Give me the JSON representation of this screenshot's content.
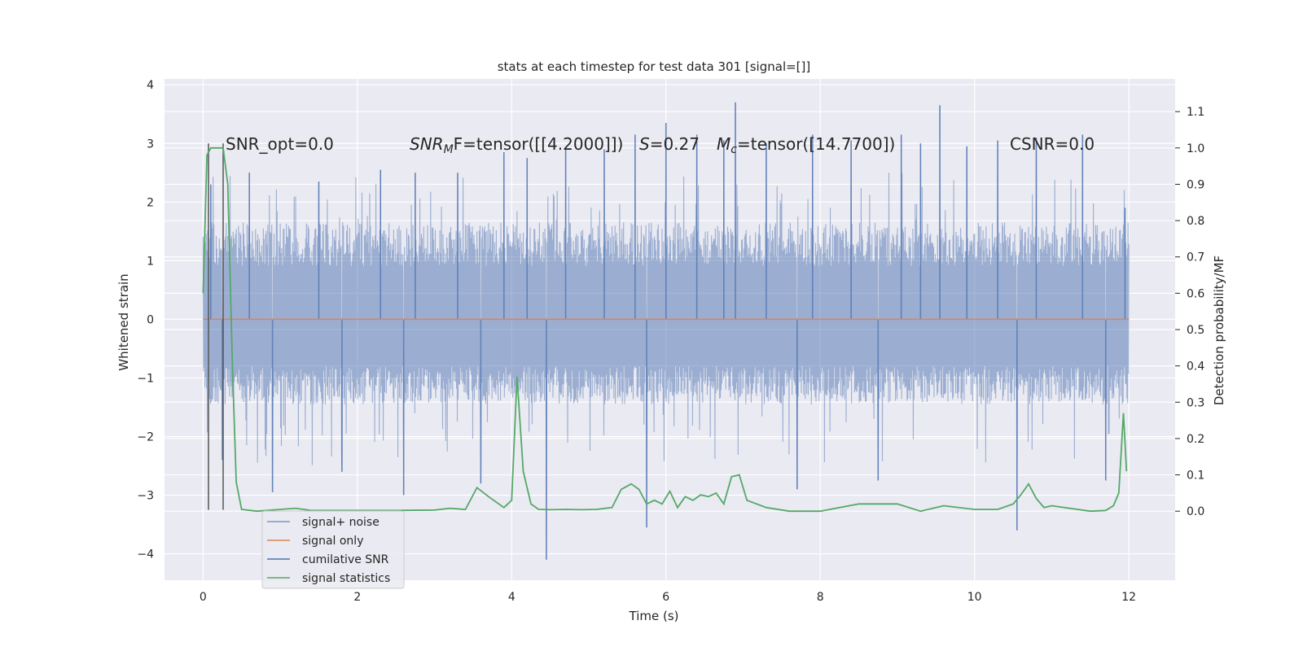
{
  "chart_data": {
    "type": "line",
    "title": "stats at each timestep for test data 301 [signal=[]]",
    "xlabel": "Time (s)",
    "ylabel_left": "Whitened strain",
    "ylabel_right": "Detection probability/MF",
    "xlim": [
      -0.5,
      12.6
    ],
    "ylim_left": [
      -4.45,
      4.1
    ],
    "ylim_right": [
      -0.19,
      1.19
    ],
    "x_ticks": [
      0,
      2,
      4,
      6,
      8,
      10,
      12
    ],
    "x_tick_labels": [
      "0",
      "2",
      "4",
      "6",
      "8",
      "10",
      "12"
    ],
    "y_left_ticks": [
      4,
      3,
      2,
      1,
      0,
      -1,
      -2,
      -3,
      -4
    ],
    "y_left_tick_labels": [
      "4",
      "3",
      "2",
      "1",
      "0",
      "−1",
      "−2",
      "−3",
      "−4"
    ],
    "y_right_ticks": [
      1.1,
      1.0,
      0.9,
      0.8,
      0.7,
      0.6,
      0.5,
      0.4,
      0.3,
      0.2,
      0.1,
      0.0
    ],
    "y_right_tick_labels": [
      "1.1",
      "1.0",
      "0.9",
      "0.8",
      "0.7",
      "0.6",
      "0.5",
      "0.4",
      "0.3",
      "0.2",
      "0.1",
      "0.0"
    ],
    "grid": true,
    "legend_position": "lower-left",
    "annotations": {
      "snr_opt": "SNR_opt=0.0",
      "snr_mf_prefix": "SNR",
      "snr_mf_sub": "M",
      "snr_mf_suffix": "F=tensor([[4.2000]])",
      "s_label": "S",
      "s_value": "=0.27",
      "mc_label": "M",
      "mc_sub": "c",
      "mc_value": "=tensor([14.7700])",
      "csnr": "CSNR=0.0"
    },
    "series": [
      {
        "name": "signal+ noise",
        "axis": "left",
        "color": "#4c72b0",
        "opacity": 0.5,
        "x_range": [
          0,
          12
        ],
        "band": [
          -1.45,
          1.65
        ],
        "spikes": [
          [
            0.1,
            2.3
          ],
          [
            0.25,
            -2.4
          ],
          [
            0.6,
            2.5
          ],
          [
            0.9,
            -2.95
          ],
          [
            1.5,
            2.35
          ],
          [
            1.8,
            -2.6
          ],
          [
            2.3,
            2.55
          ],
          [
            2.6,
            -3.0
          ],
          [
            2.75,
            2.5
          ],
          [
            3.3,
            2.5
          ],
          [
            3.6,
            -2.8
          ],
          [
            3.9,
            2.85
          ],
          [
            4.2,
            2.75
          ],
          [
            4.45,
            -4.1
          ],
          [
            4.7,
            2.9
          ],
          [
            5.2,
            2.9
          ],
          [
            5.6,
            3.15
          ],
          [
            5.75,
            -3.55
          ],
          [
            6.0,
            3.35
          ],
          [
            6.4,
            3.15
          ],
          [
            6.75,
            3.05
          ],
          [
            6.9,
            3.7
          ],
          [
            7.3,
            3.0
          ],
          [
            7.7,
            -2.9
          ],
          [
            7.9,
            3.15
          ],
          [
            8.4,
            3.05
          ],
          [
            8.75,
            -2.75
          ],
          [
            9.05,
            3.15
          ],
          [
            9.3,
            3.0
          ],
          [
            9.55,
            3.65
          ],
          [
            9.9,
            2.95
          ],
          [
            10.3,
            3.05
          ],
          [
            10.55,
            -3.6
          ],
          [
            10.8,
            3.1
          ],
          [
            11.4,
            3.15
          ],
          [
            11.7,
            -2.75
          ],
          [
            11.95,
            1.9
          ]
        ]
      },
      {
        "name": "signal only",
        "axis": "left",
        "color": "#dd8452",
        "x": [
          0,
          12
        ],
        "y": [
          0,
          0
        ]
      },
      {
        "name": "cumilative SNR",
        "axis": "right",
        "color": "#4c72b0",
        "vlines": [
          0.07,
          0.26
        ],
        "vline_color": "#555555",
        "vline_y_left": [
          -3.25,
          3.0
        ]
      },
      {
        "name": "signal statistics",
        "axis": "right",
        "color": "#55a868",
        "x": [
          0,
          0.05,
          0.1,
          0.15,
          0.2,
          0.26,
          0.32,
          0.38,
          0.43,
          0.5,
          0.7,
          1.0,
          1.2,
          1.4,
          2.0,
          2.5,
          3.0,
          3.2,
          3.4,
          3.55,
          3.7,
          3.9,
          4.0,
          4.07,
          4.15,
          4.25,
          4.35,
          4.5,
          4.7,
          4.9,
          5.1,
          5.3,
          5.42,
          5.55,
          5.65,
          5.75,
          5.85,
          5.95,
          6.05,
          6.15,
          6.25,
          6.35,
          6.45,
          6.55,
          6.65,
          6.75,
          6.85,
          6.95,
          7.05,
          7.3,
          7.6,
          8.0,
          8.5,
          9.0,
          9.3,
          9.6,
          10.0,
          10.3,
          10.5,
          10.6,
          10.7,
          10.8,
          10.9,
          11.0,
          11.5,
          11.7,
          11.8,
          11.87,
          11.93,
          11.97
        ],
        "y": [
          0.6,
          0.98,
          1.0,
          1.0,
          1.0,
          1.0,
          0.9,
          0.4,
          0.08,
          0.005,
          0.0,
          0.005,
          0.008,
          0.002,
          0.002,
          0.002,
          0.003,
          0.008,
          0.005,
          0.065,
          0.04,
          0.01,
          0.03,
          0.37,
          0.11,
          0.02,
          0.005,
          0.004,
          0.005,
          0.004,
          0.005,
          0.01,
          0.06,
          0.075,
          0.06,
          0.02,
          0.03,
          0.02,
          0.055,
          0.01,
          0.04,
          0.03,
          0.045,
          0.04,
          0.05,
          0.02,
          0.095,
          0.1,
          0.03,
          0.01,
          0.0,
          0.0,
          0.02,
          0.02,
          0.0,
          0.015,
          0.005,
          0.005,
          0.02,
          0.045,
          0.075,
          0.035,
          0.01,
          0.015,
          0.0,
          0.002,
          0.015,
          0.05,
          0.27,
          0.11
        ]
      }
    ]
  }
}
